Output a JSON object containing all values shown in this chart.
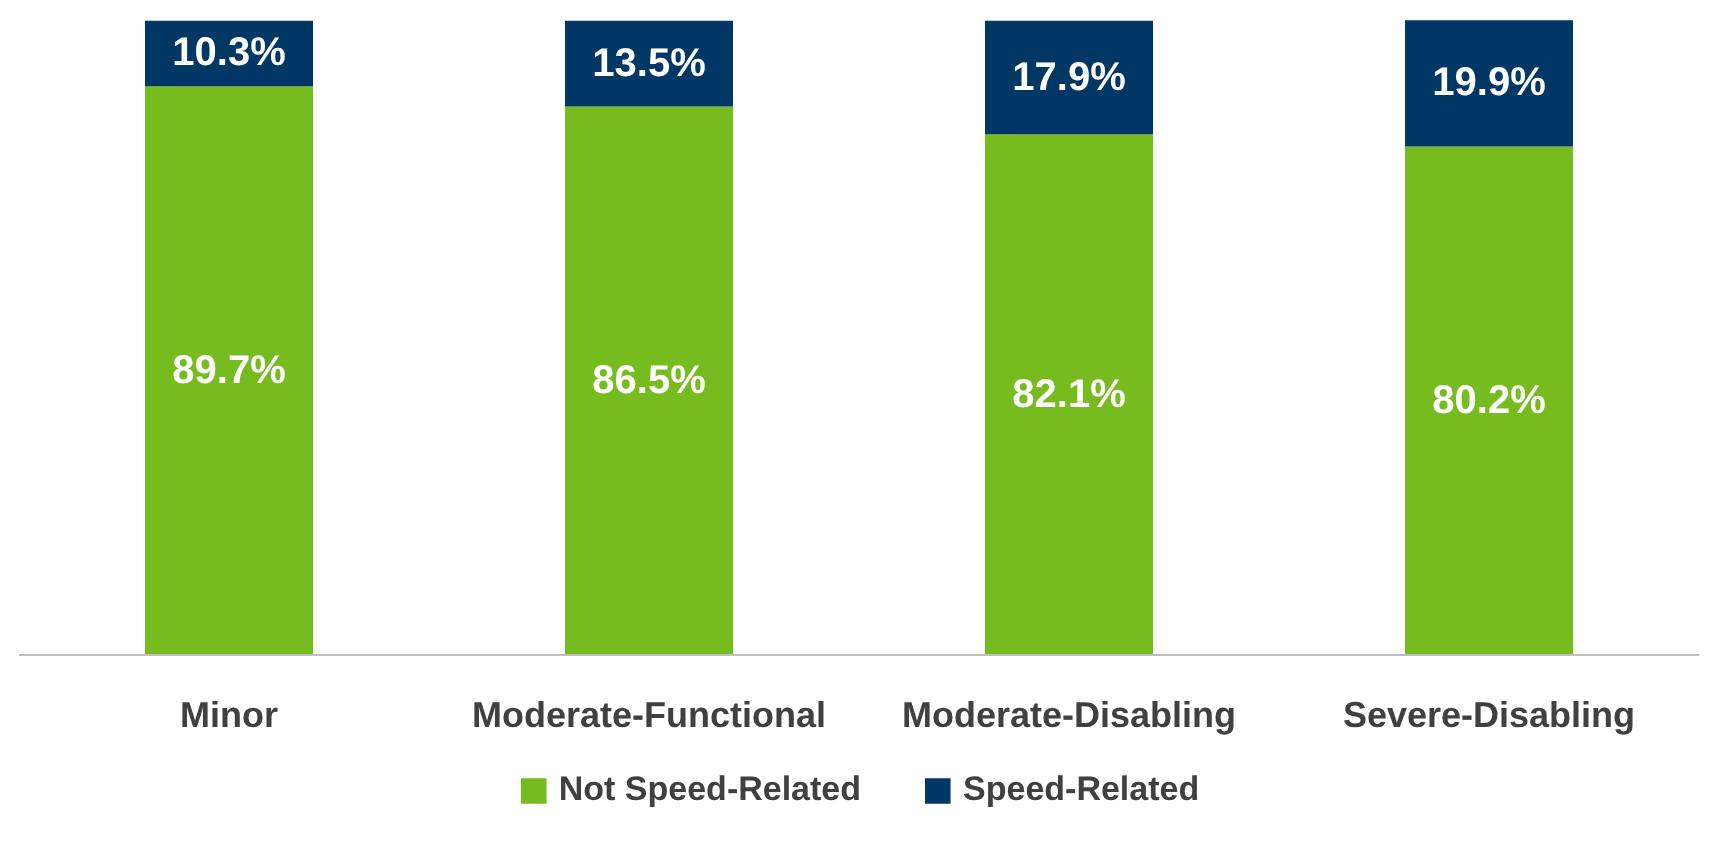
{
  "chart_data": {
    "type": "bar",
    "stacked": true,
    "legend": "bottom",
    "categories": [
      "Minor",
      "Moderate-Functional",
      "Moderate-Disabling",
      "Severe-Disabling"
    ],
    "series": [
      {
        "name": "Not Speed-Related",
        "color": "#77bc1f",
        "values": [
          89.7,
          86.5,
          82.1,
          80.2
        ],
        "value_labels": [
          "89.7%",
          "86.5%",
          "82.1%",
          "80.2%"
        ]
      },
      {
        "name": "Speed-Related",
        "color": "#003764",
        "values": [
          10.3,
          13.5,
          17.9,
          19.9
        ],
        "value_labels": [
          "10.3%",
          "13.5%",
          "17.9%",
          "19.9%"
        ]
      }
    ]
  }
}
